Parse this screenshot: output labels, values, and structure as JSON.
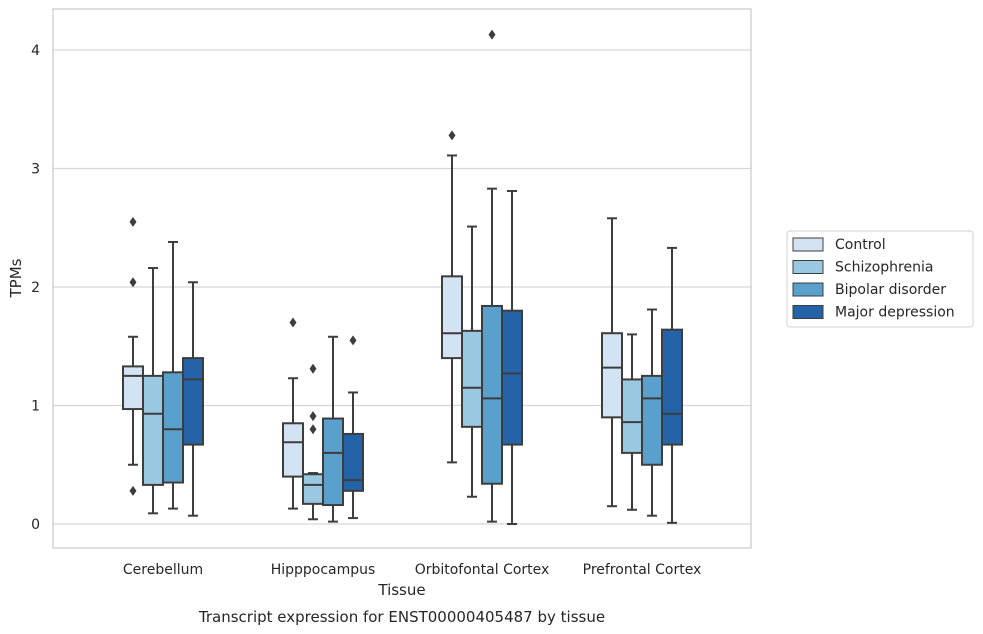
{
  "caption": "Transcript expression for ENST00000405487 by tissue",
  "chart_data": {
    "type": "box",
    "xlabel": "Tissue",
    "ylabel": "TPMs",
    "ylim": [
      -0.2,
      4.35
    ],
    "yticks": [
      0,
      1,
      2,
      3,
      4
    ],
    "grid": "horizontal",
    "legend_position": "right",
    "categories": [
      "Cerebellum",
      "Hipppocampus",
      "Orbitofontal Cortex",
      "Prefrontal Cortex"
    ],
    "series": [
      {
        "name": "Control",
        "color": "#d3e3f3",
        "boxes": [
          {
            "whislo": 0.5,
            "q1": 0.97,
            "med": 1.25,
            "q3": 1.33,
            "whishi": 1.58,
            "fliers": [
              2.55,
              2.04,
              0.28
            ]
          },
          {
            "whislo": 0.13,
            "q1": 0.4,
            "med": 0.69,
            "q3": 0.85,
            "whishi": 1.23,
            "fliers": [
              1.7
            ]
          },
          {
            "whislo": 0.52,
            "q1": 1.4,
            "med": 1.61,
            "q3": 2.09,
            "whishi": 3.11,
            "fliers": [
              3.28
            ]
          },
          {
            "whislo": 0.15,
            "q1": 0.9,
            "med": 1.32,
            "q3": 1.61,
            "whishi": 2.58,
            "fliers": []
          }
        ]
      },
      {
        "name": "Schizophrenia",
        "color": "#9ac8e0",
        "boxes": [
          {
            "whislo": 0.09,
            "q1": 0.33,
            "med": 0.93,
            "q3": 1.25,
            "whishi": 2.16,
            "fliers": []
          },
          {
            "whislo": 0.04,
            "q1": 0.17,
            "med": 0.33,
            "q3": 0.42,
            "whishi": 0.43,
            "fliers": [
              1.31,
              0.91,
              0.8
            ]
          },
          {
            "whislo": 0.23,
            "q1": 0.82,
            "med": 1.15,
            "q3": 1.63,
            "whishi": 2.51,
            "fliers": []
          },
          {
            "whislo": 0.12,
            "q1": 0.6,
            "med": 0.86,
            "q3": 1.22,
            "whishi": 1.6,
            "fliers": []
          }
        ]
      },
      {
        "name": "Bipolar disorder",
        "color": "#5aa0cd",
        "boxes": [
          {
            "whislo": 0.13,
            "q1": 0.35,
            "med": 0.8,
            "q3": 1.28,
            "whishi": 2.38,
            "fliers": []
          },
          {
            "whislo": 0.02,
            "q1": 0.16,
            "med": 0.6,
            "q3": 0.89,
            "whishi": 1.58,
            "fliers": []
          },
          {
            "whislo": 0.02,
            "q1": 0.34,
            "med": 1.06,
            "q3": 1.84,
            "whishi": 2.83,
            "fliers": [
              4.13
            ]
          },
          {
            "whislo": 0.07,
            "q1": 0.5,
            "med": 1.06,
            "q3": 1.25,
            "whishi": 1.81,
            "fliers": []
          }
        ]
      },
      {
        "name": "Major depression",
        "color": "#2563a8",
        "boxes": [
          {
            "whislo": 0.07,
            "q1": 0.67,
            "med": 1.22,
            "q3": 1.4,
            "whishi": 2.04,
            "fliers": []
          },
          {
            "whislo": 0.05,
            "q1": 0.28,
            "med": 0.37,
            "q3": 0.76,
            "whishi": 1.11,
            "fliers": [
              1.55
            ]
          },
          {
            "whislo": 0.0,
            "q1": 0.67,
            "med": 1.27,
            "q3": 1.8,
            "whishi": 2.81,
            "fliers": []
          },
          {
            "whislo": 0.01,
            "q1": 0.67,
            "med": 0.93,
            "q3": 1.64,
            "whishi": 2.33,
            "fliers": []
          }
        ]
      }
    ]
  }
}
